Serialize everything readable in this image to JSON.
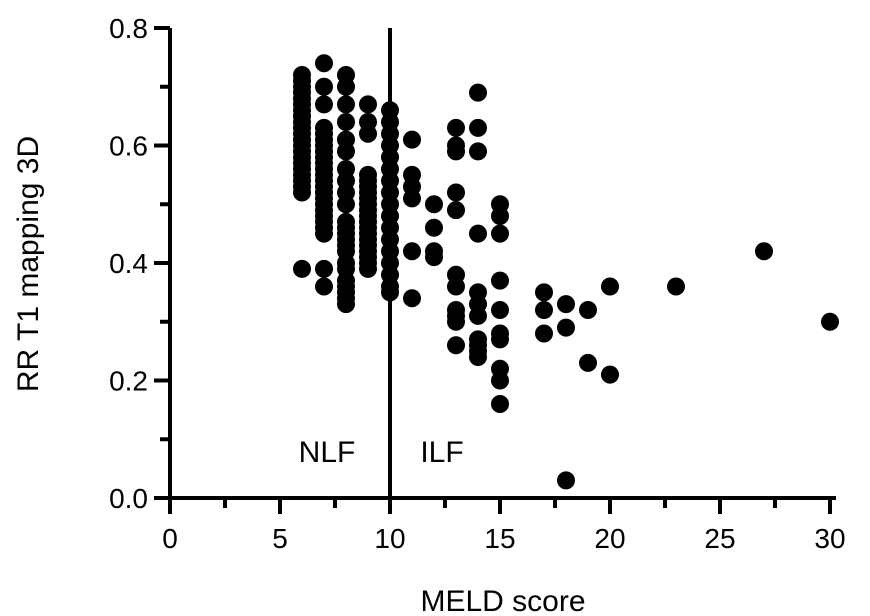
{
  "chart_data": {
    "type": "scatter",
    "xlabel": "MELD score",
    "ylabel": "RR T1 mapping 3D",
    "xlim": [
      0,
      30
    ],
    "ylim": [
      0,
      0.8
    ],
    "x_ticks": [
      "0",
      "5",
      "10",
      "15",
      "20",
      "25",
      "30"
    ],
    "y_ticks": [
      "0.0",
      "0.2",
      "0.4",
      "0.6",
      "0.8"
    ],
    "grid": false,
    "legend": "none",
    "marker_color": "#000000",
    "cutoff_line": {
      "x": 10
    },
    "annotations": [
      "NLF",
      "ILF"
    ],
    "points": [
      [
        6,
        0.72
      ],
      [
        6,
        0.71
      ],
      [
        6,
        0.7
      ],
      [
        6,
        0.69
      ],
      [
        6,
        0.68
      ],
      [
        6,
        0.67
      ],
      [
        6,
        0.66
      ],
      [
        6,
        0.65
      ],
      [
        6,
        0.64
      ],
      [
        6,
        0.63
      ],
      [
        6,
        0.62
      ],
      [
        6,
        0.61
      ],
      [
        6,
        0.6
      ],
      [
        6,
        0.59
      ],
      [
        6,
        0.58
      ],
      [
        6,
        0.57
      ],
      [
        6,
        0.56
      ],
      [
        6,
        0.55
      ],
      [
        6,
        0.54
      ],
      [
        6,
        0.53
      ],
      [
        6,
        0.52
      ],
      [
        6,
        0.39
      ],
      [
        7,
        0.74
      ],
      [
        7,
        0.7
      ],
      [
        7,
        0.67
      ],
      [
        7,
        0.63
      ],
      [
        7,
        0.62
      ],
      [
        7,
        0.61
      ],
      [
        7,
        0.6
      ],
      [
        7,
        0.59
      ],
      [
        7,
        0.58
      ],
      [
        7,
        0.57
      ],
      [
        7,
        0.56
      ],
      [
        7,
        0.55
      ],
      [
        7,
        0.54
      ],
      [
        7,
        0.53
      ],
      [
        7,
        0.52
      ],
      [
        7,
        0.51
      ],
      [
        7,
        0.5
      ],
      [
        7,
        0.49
      ],
      [
        7,
        0.48
      ],
      [
        7,
        0.47
      ],
      [
        7,
        0.46
      ],
      [
        7,
        0.45
      ],
      [
        7,
        0.39
      ],
      [
        7,
        0.36
      ],
      [
        8,
        0.72
      ],
      [
        8,
        0.7
      ],
      [
        8,
        0.67
      ],
      [
        8,
        0.64
      ],
      [
        8,
        0.61
      ],
      [
        8,
        0.59
      ],
      [
        8,
        0.56
      ],
      [
        8,
        0.54
      ],
      [
        8,
        0.52
      ],
      [
        8,
        0.5
      ],
      [
        8,
        0.47
      ],
      [
        8,
        0.46
      ],
      [
        8,
        0.45
      ],
      [
        8,
        0.44
      ],
      [
        8,
        0.43
      ],
      [
        8,
        0.42
      ],
      [
        8,
        0.4
      ],
      [
        8,
        0.39
      ],
      [
        8,
        0.37
      ],
      [
        8,
        0.36
      ],
      [
        8,
        0.35
      ],
      [
        8,
        0.34
      ],
      [
        8,
        0.33
      ],
      [
        9,
        0.67
      ],
      [
        9,
        0.64
      ],
      [
        9,
        0.62
      ],
      [
        9,
        0.55
      ],
      [
        9,
        0.54
      ],
      [
        9,
        0.53
      ],
      [
        9,
        0.52
      ],
      [
        9,
        0.51
      ],
      [
        9,
        0.5
      ],
      [
        9,
        0.49
      ],
      [
        9,
        0.48
      ],
      [
        9,
        0.47
      ],
      [
        9,
        0.46
      ],
      [
        9,
        0.45
      ],
      [
        9,
        0.44
      ],
      [
        9,
        0.43
      ],
      [
        9,
        0.42
      ],
      [
        9,
        0.41
      ],
      [
        9,
        0.4
      ],
      [
        9,
        0.39
      ],
      [
        10,
        0.66
      ],
      [
        10,
        0.64
      ],
      [
        10,
        0.62
      ],
      [
        10,
        0.6
      ],
      [
        10,
        0.58
      ],
      [
        10,
        0.56
      ],
      [
        10,
        0.54
      ],
      [
        10,
        0.52
      ],
      [
        10,
        0.5
      ],
      [
        10,
        0.48
      ],
      [
        10,
        0.46
      ],
      [
        10,
        0.44
      ],
      [
        10,
        0.42
      ],
      [
        10,
        0.4
      ],
      [
        10,
        0.38
      ],
      [
        10,
        0.36
      ],
      [
        10,
        0.35
      ],
      [
        11,
        0.61
      ],
      [
        11,
        0.55
      ],
      [
        11,
        0.53
      ],
      [
        11,
        0.51
      ],
      [
        11,
        0.42
      ],
      [
        11,
        0.34
      ],
      [
        12,
        0.5
      ],
      [
        12,
        0.46
      ],
      [
        12,
        0.42
      ],
      [
        12,
        0.41
      ],
      [
        13,
        0.63
      ],
      [
        13,
        0.6
      ],
      [
        13,
        0.59
      ],
      [
        13,
        0.52
      ],
      [
        13,
        0.49
      ],
      [
        13,
        0.38
      ],
      [
        13,
        0.36
      ],
      [
        13,
        0.32
      ],
      [
        13,
        0.31
      ],
      [
        13,
        0.3
      ],
      [
        13,
        0.26
      ],
      [
        14,
        0.69
      ],
      [
        14,
        0.63
      ],
      [
        14,
        0.59
      ],
      [
        14,
        0.45
      ],
      [
        14,
        0.35
      ],
      [
        14,
        0.33
      ],
      [
        14,
        0.31
      ],
      [
        14,
        0.27
      ],
      [
        14,
        0.26
      ],
      [
        14,
        0.25
      ],
      [
        14,
        0.24
      ],
      [
        15,
        0.5
      ],
      [
        15,
        0.48
      ],
      [
        15,
        0.45
      ],
      [
        15,
        0.37
      ],
      [
        15,
        0.32
      ],
      [
        15,
        0.28
      ],
      [
        15,
        0.27
      ],
      [
        15,
        0.22
      ],
      [
        15,
        0.2
      ],
      [
        15,
        0.16
      ],
      [
        17,
        0.35
      ],
      [
        17,
        0.32
      ],
      [
        17,
        0.28
      ],
      [
        18,
        0.33
      ],
      [
        18,
        0.29
      ],
      [
        18,
        0.03
      ],
      [
        19,
        0.32
      ],
      [
        19,
        0.23
      ],
      [
        20,
        0.36
      ],
      [
        20,
        0.21
      ],
      [
        23,
        0.36
      ],
      [
        27,
        0.42
      ],
      [
        30,
        0.3
      ]
    ]
  }
}
